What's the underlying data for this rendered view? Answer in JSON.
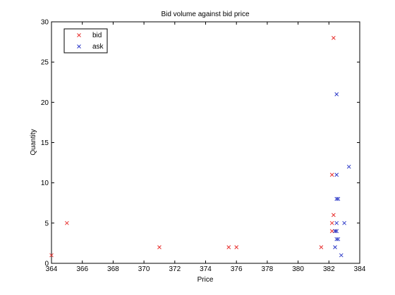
{
  "chart_data": {
    "type": "scatter",
    "title": "Bid volume against bid price",
    "xlabel": "Price",
    "ylabel": "Quantity",
    "xlim": [
      364,
      384
    ],
    "ylim": [
      0,
      30
    ],
    "x_ticks": [
      364,
      366,
      368,
      370,
      372,
      374,
      376,
      378,
      380,
      382,
      384
    ],
    "y_ticks": [
      0,
      5,
      10,
      15,
      20,
      25,
      30
    ],
    "grid": false,
    "legend_position": "top-left",
    "marker": "x",
    "series": [
      {
        "name": "bid",
        "color": "#e8312f",
        "points": [
          {
            "x": 364,
            "y": 1
          },
          {
            "x": 365,
            "y": 5
          },
          {
            "x": 371,
            "y": 2
          },
          {
            "x": 375.5,
            "y": 2
          },
          {
            "x": 376,
            "y": 2
          },
          {
            "x": 381.5,
            "y": 2
          },
          {
            "x": 382.2,
            "y": 11
          },
          {
            "x": 382.3,
            "y": 28
          },
          {
            "x": 382.3,
            "y": 6
          },
          {
            "x": 382.2,
            "y": 5
          },
          {
            "x": 382.2,
            "y": 4
          },
          {
            "x": 382.4,
            "y": 4
          }
        ]
      },
      {
        "name": "ask",
        "color": "#2e3bc8",
        "points": [
          {
            "x": 382.5,
            "y": 21
          },
          {
            "x": 383.3,
            "y": 12
          },
          {
            "x": 382.5,
            "y": 11
          },
          {
            "x": 382.5,
            "y": 8
          },
          {
            "x": 382.6,
            "y": 8
          },
          {
            "x": 382.5,
            "y": 5
          },
          {
            "x": 383,
            "y": 5
          },
          {
            "x": 382.4,
            "y": 4
          },
          {
            "x": 382.5,
            "y": 4
          },
          {
            "x": 382.5,
            "y": 3
          },
          {
            "x": 382.6,
            "y": 3
          },
          {
            "x": 382.4,
            "y": 2
          },
          {
            "x": 382.8,
            "y": 1
          }
        ]
      }
    ]
  }
}
